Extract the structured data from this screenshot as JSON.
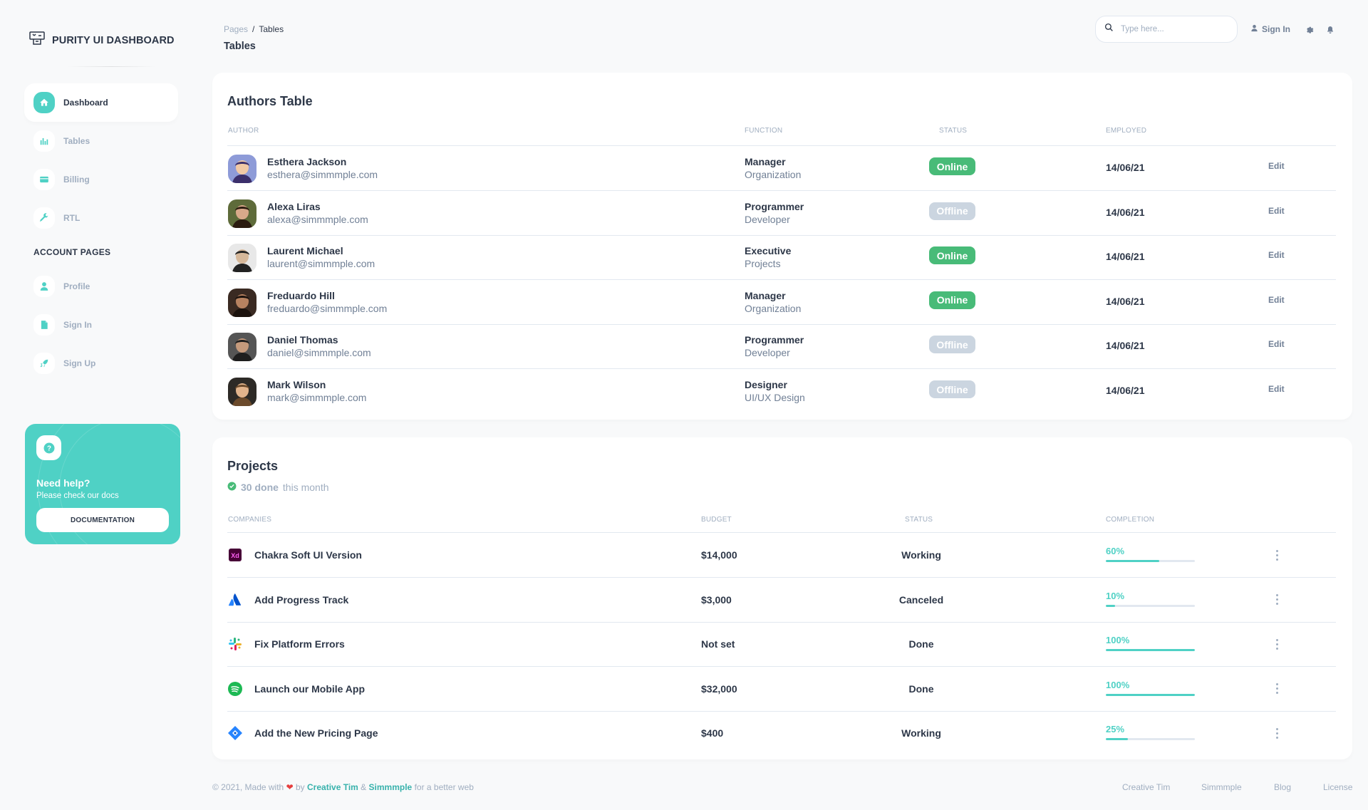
{
  "brand": {
    "name": "PURITY UI DASHBOARD"
  },
  "sidebar": {
    "items": [
      {
        "label": "Dashboard",
        "icon": "home-icon",
        "active": true
      },
      {
        "label": "Tables",
        "icon": "bar-chart-icon",
        "active": false
      },
      {
        "label": "Billing",
        "icon": "credit-card-icon",
        "active": false
      },
      {
        "label": "RTL",
        "icon": "wrench-icon",
        "active": false
      }
    ],
    "section_title": "ACCOUNT PAGES",
    "account_items": [
      {
        "label": "Profile",
        "icon": "person-icon"
      },
      {
        "label": "Sign In",
        "icon": "document-icon"
      },
      {
        "label": "Sign Up",
        "icon": "rocket-icon"
      }
    ],
    "help": {
      "title": "Need help?",
      "subtitle": "Please check our docs",
      "button": "DOCUMENTATION"
    }
  },
  "header": {
    "breadcrumb_root": "Pages",
    "breadcrumb_sep": "/",
    "breadcrumb_current": "Tables",
    "title": "Tables",
    "search_placeholder": "Type here...",
    "signin": "Sign In"
  },
  "authors": {
    "title": "Authors Table",
    "columns": [
      "AUTHOR",
      "FUNCTION",
      "STATUS",
      "EMPLOYED"
    ],
    "rows": [
      {
        "name": "Esthera Jackson",
        "email": "esthera@simmmple.com",
        "role": "Manager",
        "org": "Organization",
        "status": "Online",
        "employed": "14/06/21",
        "action": "Edit"
      },
      {
        "name": "Alexa Liras",
        "email": "alexa@simmmple.com",
        "role": "Programmer",
        "org": "Developer",
        "status": "Offline",
        "employed": "14/06/21",
        "action": "Edit"
      },
      {
        "name": "Laurent Michael",
        "email": "laurent@simmmple.com",
        "role": "Executive",
        "org": "Projects",
        "status": "Online",
        "employed": "14/06/21",
        "action": "Edit"
      },
      {
        "name": "Freduardo Hill",
        "email": "freduardo@simmmple.com",
        "role": "Manager",
        "org": "Organization",
        "status": "Online",
        "employed": "14/06/21",
        "action": "Edit"
      },
      {
        "name": "Daniel Thomas",
        "email": "daniel@simmmple.com",
        "role": "Programmer",
        "org": "Developer",
        "status": "Offline",
        "employed": "14/06/21",
        "action": "Edit"
      },
      {
        "name": "Mark Wilson",
        "email": "mark@simmmple.com",
        "role": "Designer",
        "org": "UI/UX Design",
        "status": "Offline",
        "employed": "14/06/21",
        "action": "Edit"
      }
    ]
  },
  "projects": {
    "title": "Projects",
    "done_bold": "30 done",
    "done_rest": "this month",
    "columns": [
      "COMPANIES",
      "BUDGET",
      "STATUS",
      "COMPLETION"
    ],
    "rows": [
      {
        "name": "Chakra Soft UI Version",
        "logo": "adobe-xd-icon",
        "budget": "$14,000",
        "status": "Working",
        "completion": "60%",
        "progress": 0.6
      },
      {
        "name": "Add Progress Track",
        "logo": "atlassian-icon",
        "budget": "$3,000",
        "status": "Canceled",
        "completion": "10%",
        "progress": 0.1
      },
      {
        "name": "Fix Platform Errors",
        "logo": "slack-icon",
        "budget": "Not set",
        "status": "Done",
        "completion": "100%",
        "progress": 1.0
      },
      {
        "name": "Launch our Mobile App",
        "logo": "spotify-icon",
        "budget": "$32,000",
        "status": "Done",
        "completion": "100%",
        "progress": 1.0
      },
      {
        "name": "Add the New Pricing Page",
        "logo": "jira-icon",
        "budget": "$400",
        "status": "Working",
        "completion": "25%",
        "progress": 0.25
      }
    ]
  },
  "footer": {
    "prefix": "© 2021, Made with",
    "by": "by",
    "link1": "Creative Tim",
    "amp": "&",
    "link2": "Simmmple",
    "suffix": "for a better web",
    "links": [
      "Creative Tim",
      "Simmmple",
      "Blog",
      "License"
    ]
  },
  "colors": {
    "accent": "#4fd1c5",
    "online": "#48bb78",
    "offline": "#cbd5e0",
    "text": "#2d3748",
    "muted": "#a0aec0"
  }
}
